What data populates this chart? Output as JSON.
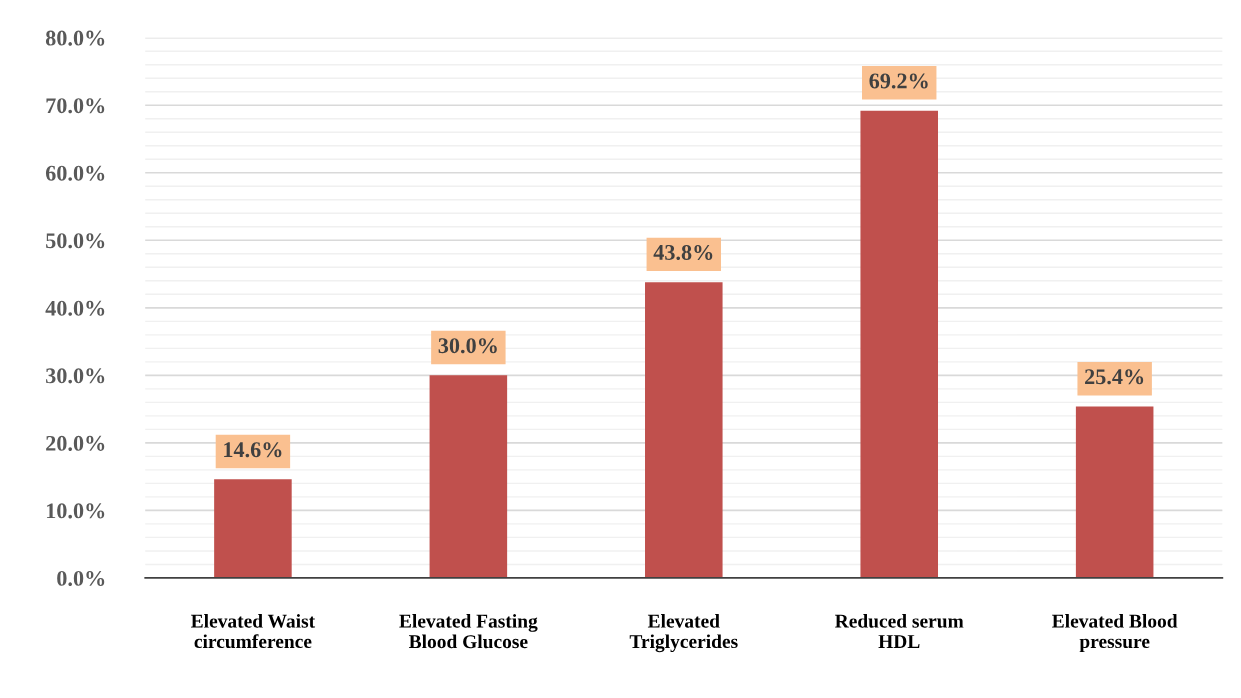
{
  "chart_data": {
    "type": "bar",
    "categories": [
      "Elevated Waist\ncircumference",
      "Elevated Fasting\nBlood Glucose",
      "Elevated\nTriglycerides",
      "Reduced serum\nHDL",
      "Elevated Blood\npressure"
    ],
    "values": [
      14.6,
      30.0,
      43.8,
      69.2,
      25.4
    ],
    "value_labels": [
      "14.6%",
      "30.0%",
      "43.8%",
      "69.2%",
      "25.4%"
    ],
    "color": "#c0504d",
    "ylim": [
      0,
      80
    ],
    "yticks": [
      {
        "value": 0,
        "label": "0.0%"
      },
      {
        "value": 2,
        "label": null
      },
      {
        "value": 4,
        "label": null
      },
      {
        "value": 6,
        "label": null
      },
      {
        "value": 8,
        "label": null
      },
      {
        "value": 10,
        "label": "10.0%"
      },
      {
        "value": 12,
        "label": null
      },
      {
        "value": 14,
        "label": null
      },
      {
        "value": 16,
        "label": null
      },
      {
        "value": 18,
        "label": null
      },
      {
        "value": 20,
        "label": "20.0%"
      },
      {
        "value": 22,
        "label": null
      },
      {
        "value": 24,
        "label": null
      },
      {
        "value": 26,
        "label": null
      },
      {
        "value": 28,
        "label": null
      },
      {
        "value": 30,
        "label": "30.0%"
      },
      {
        "value": 32,
        "label": null
      },
      {
        "value": 34,
        "label": null
      },
      {
        "value": 36,
        "label": null
      },
      {
        "value": 38,
        "label": null
      },
      {
        "value": 40,
        "label": "40.0%"
      },
      {
        "value": 42,
        "label": null
      },
      {
        "value": 44,
        "label": null
      },
      {
        "value": 46,
        "label": null
      },
      {
        "value": 48,
        "label": null
      },
      {
        "value": 50,
        "label": "50.0%"
      },
      {
        "value": 52,
        "label": null
      },
      {
        "value": 54,
        "label": null
      },
      {
        "value": 56,
        "label": null
      },
      {
        "value": 58,
        "label": null
      },
      {
        "value": 60,
        "label": "60.0%"
      },
      {
        "value": 62,
        "label": null
      },
      {
        "value": 64,
        "label": null
      },
      {
        "value": 66,
        "label": null
      },
      {
        "value": 68,
        "label": null
      },
      {
        "value": 70,
        "label": "70.0%"
      },
      {
        "value": 72,
        "label": null
      },
      {
        "value": 74,
        "label": null
      },
      {
        "value": 76,
        "label": null
      },
      {
        "value": 78,
        "label": null
      },
      {
        "value": 80,
        "label": "80.0%"
      }
    ],
    "grid": "y"
  }
}
